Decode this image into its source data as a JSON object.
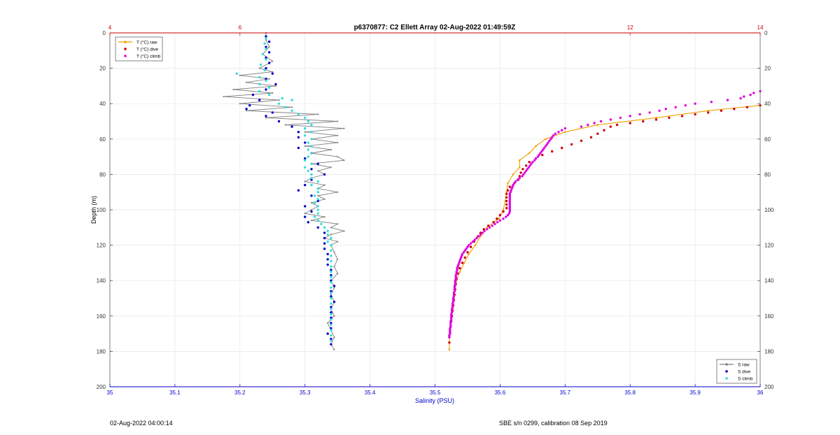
{
  "chart_data": {
    "type": "line",
    "title": "p6370877: C2 Ellett Array 02-Aug-2022 01:49:59Z",
    "ylabel": "Depth (m)",
    "xlabel": "Salinity (PSU)",
    "ylim": [
      0,
      200
    ],
    "y_reversed": true,
    "y_ticks": [
      0,
      20,
      40,
      60,
      80,
      100,
      120,
      140,
      160,
      180,
      200
    ],
    "salinity_axis": {
      "position": "bottom",
      "color": "#0000cc",
      "lim": [
        35,
        36
      ],
      "ticks": [
        35,
        35.1,
        35.2,
        35.3,
        35.4,
        35.5,
        35.6,
        35.7,
        35.8,
        35.9,
        36
      ]
    },
    "temperature_axis": {
      "position": "top",
      "color": "#cc0000",
      "lim": [
        4,
        14
      ],
      "ticks": [
        4,
        6,
        12,
        14
      ]
    },
    "grid": true,
    "series": [
      {
        "name": "T (°C) raw",
        "axis": "temperature",
        "style": "line",
        "color": "#f0a000",
        "depth": [
          41,
          44,
          48,
          52,
          56,
          60,
          64,
          68,
          72,
          76,
          80,
          85,
          90,
          95,
          100,
          105,
          110,
          115,
          120,
          125,
          130,
          135,
          140,
          145,
          150,
          155,
          160,
          165,
          170,
          175,
          179
        ],
        "values": [
          14.0,
          13.2,
          12.4,
          11.5,
          11.0,
          10.7,
          10.55,
          10.45,
          10.3,
          10.3,
          10.2,
          10.12,
          10.1,
          10.08,
          10.05,
          9.98,
          9.8,
          9.7,
          9.62,
          9.52,
          9.45,
          9.38,
          9.33,
          9.31,
          9.29,
          9.27,
          9.25,
          9.24,
          9.23,
          9.22,
          9.22
        ]
      },
      {
        "name": "T (°C) dive",
        "axis": "temperature",
        "style": "markers",
        "color": "#cc0000",
        "depth": [
          41,
          42,
          43,
          44,
          45,
          46,
          47,
          48,
          49,
          50,
          51,
          52,
          53,
          55,
          57,
          59,
          61,
          63,
          65,
          67,
          69,
          71,
          73,
          75,
          77,
          79,
          81,
          83,
          85,
          87,
          89,
          91,
          93,
          95,
          97,
          99,
          101,
          103,
          105,
          107,
          109,
          111,
          113,
          115,
          118,
          121,
          124,
          127,
          130,
          133,
          136,
          139,
          142,
          145,
          148,
          151,
          154,
          157,
          160,
          163,
          166,
          169,
          172,
          175
        ],
        "values": [
          14.0,
          13.8,
          13.6,
          13.4,
          13.2,
          13.0,
          12.8,
          12.6,
          12.4,
          12.2,
          12.0,
          11.8,
          11.7,
          11.6,
          11.5,
          11.4,
          11.25,
          11.1,
          10.95,
          10.8,
          10.65,
          10.55,
          10.45,
          10.4,
          10.35,
          10.32,
          10.3,
          10.28,
          10.22,
          10.15,
          10.12,
          10.1,
          10.1,
          10.1,
          10.1,
          10.1,
          10.05,
          10.0,
          9.95,
          9.9,
          9.82,
          9.75,
          9.7,
          9.66,
          9.6,
          9.55,
          9.5,
          9.46,
          9.42,
          9.38,
          9.35,
          9.33,
          9.32,
          9.31,
          9.3,
          9.29,
          9.28,
          9.27,
          9.26,
          9.25,
          9.24,
          9.23,
          9.22,
          9.22
        ]
      },
      {
        "name": "T (°C) climb",
        "axis": "temperature",
        "style": "markers",
        "color": "#e000e0",
        "depth": [
          33,
          34,
          35,
          36,
          37,
          38,
          39,
          40,
          41,
          42,
          43,
          44,
          45,
          46,
          47,
          48,
          49,
          50,
          51,
          52,
          53,
          54,
          55,
          56,
          57,
          58,
          59,
          60,
          61,
          62,
          63,
          64,
          65,
          66,
          67,
          68,
          69,
          70,
          71,
          72,
          73,
          74,
          75,
          76,
          77,
          78,
          79,
          80,
          81,
          82,
          83,
          84,
          85,
          86,
          87,
          88,
          89,
          90,
          91,
          92,
          93,
          94,
          95,
          96,
          97,
          98,
          99,
          100,
          101,
          102,
          103,
          104,
          105,
          106,
          107,
          108,
          109,
          110,
          111,
          112,
          113,
          114,
          115,
          116,
          117,
          118,
          119,
          120,
          121,
          122,
          123,
          124,
          125,
          126,
          127,
          128,
          129,
          130,
          131,
          132,
          133,
          134,
          135,
          136,
          137,
          138,
          139,
          140,
          141,
          142,
          143,
          144,
          145,
          146,
          147,
          148,
          149,
          150,
          151,
          152,
          153,
          154,
          155,
          156,
          157,
          158,
          159,
          160,
          161,
          162,
          163,
          164,
          165,
          166,
          167,
          168,
          169,
          170,
          171,
          172
        ],
        "values": [
          14.0,
          13.9,
          13.85,
          13.75,
          13.7,
          13.5,
          13.25,
          13.0,
          12.85,
          12.7,
          12.55,
          12.45,
          12.3,
          12.15,
          12.0,
          11.85,
          11.7,
          11.55,
          11.45,
          11.35,
          11.25,
          11.0,
          10.95,
          10.9,
          10.85,
          10.82,
          10.8,
          10.78,
          10.76,
          10.74,
          10.72,
          10.7,
          10.68,
          10.66,
          10.64,
          10.62,
          10.6,
          10.58,
          10.55,
          10.53,
          10.5,
          10.48,
          10.46,
          10.44,
          10.42,
          10.4,
          10.38,
          10.36,
          10.34,
          10.3,
          10.27,
          10.24,
          10.22,
          10.2,
          10.19,
          10.18,
          10.17,
          10.16,
          10.15,
          10.15,
          10.15,
          10.15,
          10.15,
          10.15,
          10.15,
          10.15,
          10.15,
          10.15,
          10.15,
          10.14,
          10.12,
          10.09,
          10.05,
          10.0,
          9.96,
          9.92,
          9.88,
          9.84,
          9.8,
          9.76,
          9.73,
          9.7,
          9.67,
          9.64,
          9.61,
          9.58,
          9.55,
          9.52,
          9.5,
          9.48,
          9.46,
          9.44,
          9.42,
          9.41,
          9.4,
          9.39,
          9.38,
          9.37,
          9.36,
          9.35,
          9.34,
          9.34,
          9.33,
          9.33,
          9.32,
          9.32,
          9.32,
          9.31,
          9.31,
          9.31,
          9.3,
          9.3,
          9.3,
          9.3,
          9.29,
          9.29,
          9.29,
          9.28,
          9.28,
          9.28,
          9.27,
          9.27,
          9.27,
          9.26,
          9.26,
          9.26,
          9.25,
          9.25,
          9.25,
          9.25,
          9.24,
          9.24,
          9.24,
          9.24,
          9.23,
          9.23,
          9.23,
          9.23,
          9.22,
          9.22
        ]
      },
      {
        "name": "S raw",
        "axis": "salinity",
        "style": "line-markers",
        "color": "#808080",
        "depth": [
          0,
          4,
          8,
          12,
          16,
          20,
          22,
          24,
          26,
          28,
          30,
          32,
          34,
          36,
          38,
          40,
          42,
          44,
          46,
          48,
          50,
          52,
          54,
          56,
          58,
          60,
          62,
          64,
          66,
          68,
          70,
          72,
          74,
          76,
          78,
          80,
          82,
          84,
          86,
          88,
          90,
          92,
          94,
          96,
          98,
          100,
          102,
          104,
          106,
          108,
          110,
          112,
          114,
          116,
          118,
          120,
          124,
          128,
          132,
          136,
          140,
          144,
          148,
          152,
          156,
          160,
          164,
          168,
          172,
          176,
          179
        ],
        "values": [
          35.24,
          35.24,
          35.245,
          35.235,
          35.25,
          35.23,
          35.25,
          35.2,
          35.245,
          35.21,
          35.255,
          35.19,
          35.25,
          35.175,
          35.26,
          35.2,
          35.28,
          35.21,
          35.32,
          35.24,
          35.35,
          35.27,
          35.36,
          35.3,
          35.35,
          35.31,
          35.35,
          35.3,
          35.34,
          35.31,
          35.35,
          35.36,
          35.31,
          35.34,
          35.32,
          35.33,
          35.31,
          35.3,
          35.33,
          35.32,
          35.35,
          35.32,
          35.33,
          35.31,
          35.32,
          35.31,
          35.3,
          35.33,
          35.31,
          35.35,
          35.34,
          35.36,
          35.34,
          35.33,
          35.35,
          35.34,
          35.345,
          35.35,
          35.345,
          35.35,
          35.34,
          35.345,
          35.34,
          35.345,
          35.34,
          35.345,
          35.335,
          35.34,
          35.345,
          35.34,
          35.345
        ]
      },
      {
        "name": "S dive",
        "axis": "salinity",
        "style": "markers",
        "color": "#0000cc",
        "depth": [
          2,
          5,
          8,
          11,
          14,
          17,
          20,
          23,
          26,
          29,
          32,
          35,
          38,
          41,
          43,
          45,
          47,
          50,
          53,
          56,
          59,
          62,
          65,
          68,
          71,
          74,
          77,
          80,
          83,
          86,
          89,
          92,
          95,
          98,
          101,
          104,
          107,
          110,
          113,
          116,
          119,
          122,
          125,
          128,
          131,
          134,
          137,
          140,
          143,
          146,
          149,
          152,
          155,
          158,
          161,
          164,
          167,
          170,
          173,
          176
        ],
        "values": [
          35.24,
          35.245,
          35.24,
          35.245,
          35.24,
          35.245,
          35.24,
          35.25,
          35.24,
          35.255,
          35.24,
          35.22,
          35.23,
          35.215,
          35.21,
          35.25,
          35.24,
          35.26,
          35.28,
          35.29,
          35.29,
          35.3,
          35.29,
          35.31,
          35.3,
          35.32,
          35.31,
          35.33,
          35.31,
          35.3,
          35.29,
          35.31,
          35.32,
          35.3,
          35.31,
          35.3,
          35.305,
          35.32,
          35.33,
          35.33,
          35.33,
          35.33,
          35.335,
          35.335,
          35.335,
          35.34,
          35.34,
          35.34,
          35.345,
          35.34,
          35.34,
          35.345,
          35.34,
          35.34,
          35.34,
          35.34,
          35.34,
          35.335,
          35.34,
          35.34
        ]
      },
      {
        "name": "S climb",
        "axis": "salinity",
        "style": "markers",
        "color": "#33dddd",
        "depth": [
          3,
          6,
          9,
          12,
          15,
          18,
          21,
          23,
          25,
          27,
          29,
          31,
          33,
          35,
          37,
          38,
          40,
          42,
          44,
          46,
          48,
          50,
          52,
          54,
          56,
          58,
          60,
          62,
          64,
          66,
          68,
          70,
          72,
          74,
          76,
          78,
          80,
          82,
          84,
          86,
          88,
          90,
          92,
          94,
          96,
          98,
          100,
          102,
          104,
          106,
          108,
          110,
          112,
          114,
          116,
          118,
          120,
          123,
          126,
          129,
          132,
          135,
          138,
          141,
          144,
          147,
          150,
          153,
          156,
          159,
          162,
          165,
          168,
          171,
          174
        ],
        "values": [
          35.24,
          35.238,
          35.24,
          35.235,
          35.24,
          35.232,
          35.238,
          35.195,
          35.23,
          35.24,
          35.23,
          35.245,
          35.23,
          35.245,
          35.265,
          35.28,
          35.26,
          35.27,
          35.28,
          35.29,
          35.3,
          35.305,
          35.31,
          35.3,
          35.31,
          35.3,
          35.31,
          35.305,
          35.31,
          35.305,
          35.31,
          35.305,
          35.3,
          35.31,
          35.3,
          35.305,
          35.31,
          35.31,
          35.32,
          35.31,
          35.32,
          35.32,
          35.315,
          35.32,
          35.315,
          35.32,
          35.32,
          35.32,
          35.315,
          35.32,
          35.325,
          35.33,
          35.335,
          35.335,
          35.34,
          35.335,
          35.34,
          35.34,
          35.34,
          35.34,
          35.34,
          35.34,
          35.34,
          35.34,
          35.34,
          35.34,
          35.34,
          35.34,
          35.34,
          35.34,
          35.34,
          35.34,
          35.34,
          35.34,
          35.34
        ]
      }
    ],
    "legends": [
      {
        "placement": "top-left",
        "items": [
          "T (°C) raw",
          "T (°C) dive",
          "T (°C) climb"
        ]
      },
      {
        "placement": "bottom-right",
        "items": [
          "S raw",
          "S dive",
          "S climb"
        ]
      }
    ]
  },
  "footer": {
    "date": "02-Aug-2022 04:00:14",
    "sensor": "SBE s/n 0299, calibration 08 Sep 2019"
  }
}
